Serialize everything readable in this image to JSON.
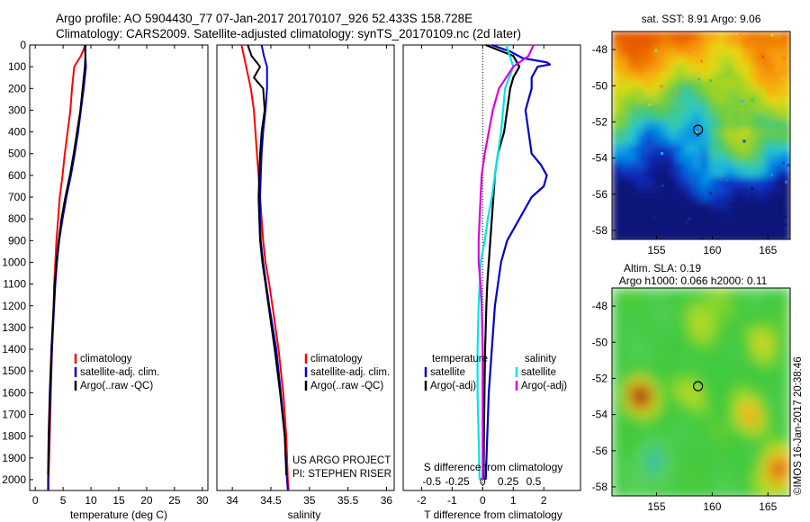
{
  "title_line1": "Argo profile: AO 5904430_77 07-Jan-2017 20170107_926 52.433S 158.728E",
  "title_line2": "Climatology: CARS2009. Satellite-adjusted climatology: synTS_20170109.nc (2d later)",
  "credit_line1": "US ARGO PROJECT",
  "credit_line2": "PI: STEPHEN RISER",
  "sst_title": "sat. SST: 8.91  Argo: 9.06",
  "sla_title_line1": "Altim. SLA: 0.19",
  "sla_title_line2": "Argo h1000: 0.066 h2000: 0.11",
  "watermark": "©IMOS 16-Jan-2017 20:38:46",
  "colors": {
    "climatology": "#ff0000",
    "satellite": "#0000cc",
    "argo": "#000000",
    "sat_salinity": "#00e5e5",
    "argo_salinity": "#dd00dd"
  },
  "chart_data": [
    {
      "type": "line",
      "id": "temperature",
      "xlabel": "temperature (deg C)",
      "ylabel": "",
      "xlim": [
        -1,
        31
      ],
      "ylim": [
        2050,
        0
      ],
      "xticks": [
        0,
        5,
        10,
        15,
        20,
        25,
        30
      ],
      "yticks": [
        0,
        100,
        200,
        300,
        400,
        500,
        600,
        700,
        800,
        900,
        1000,
        1100,
        1200,
        1300,
        1400,
        1500,
        1600,
        1700,
        1800,
        1900,
        2000
      ],
      "legend": {
        "position": "lower-middle",
        "entries": [
          "climatology",
          "satellite-adj. clim.",
          "Argo(..raw -QC)"
        ]
      },
      "series": [
        {
          "name": "climatology",
          "color": "#ff0000",
          "depth": [
            0,
            50,
            100,
            200,
            300,
            400,
            500,
            600,
            700,
            800,
            900,
            1000,
            1100,
            1200,
            1400,
            1600,
            1800,
            2000,
            2050
          ],
          "values": [
            9.0,
            8.2,
            7.0,
            6.6,
            6.3,
            5.8,
            5.3,
            4.9,
            4.4,
            4.1,
            3.8,
            3.6,
            3.4,
            3.3,
            3.0,
            2.8,
            2.6,
            2.4,
            2.4
          ]
        },
        {
          "name": "satellite-adj. clim.",
          "color": "#0000cc",
          "depth": [
            0,
            50,
            100,
            200,
            300,
            400,
            500,
            600,
            700,
            800,
            900,
            1000,
            1100,
            1200,
            1400,
            1600,
            1800,
            2000,
            2050
          ],
          "values": [
            8.9,
            9.0,
            9.1,
            8.7,
            8.2,
            7.7,
            7.1,
            6.4,
            5.6,
            4.9,
            4.3,
            3.9,
            3.6,
            3.4,
            3.0,
            2.7,
            2.5,
            2.3,
            2.3
          ]
        },
        {
          "name": "Argo(..raw -QC)",
          "color": "#000000",
          "depth": [
            0,
            50,
            100,
            200,
            300,
            400,
            500,
            600,
            700,
            800,
            900,
            1000,
            1100,
            1200,
            1400,
            1600,
            1800,
            1980
          ],
          "values": [
            9.0,
            9.0,
            8.9,
            8.5,
            8.1,
            7.5,
            6.9,
            6.2,
            5.4,
            4.7,
            4.2,
            3.8,
            3.5,
            3.3,
            2.9,
            2.6,
            2.4,
            2.3
          ]
        }
      ]
    },
    {
      "type": "line",
      "id": "salinity",
      "xlabel": "salinity",
      "ylabel": "",
      "xlim": [
        33.8,
        36.1
      ],
      "ylim": [
        2050,
        0
      ],
      "xticks": [
        34,
        34.5,
        35,
        35.5,
        36
      ],
      "legend": {
        "position": "lower-right",
        "entries": [
          "climatology",
          "satellite-adj. clim.",
          "Argo(..raw -QC)"
        ]
      },
      "series": [
        {
          "name": "climatology",
          "color": "#ff0000",
          "depth": [
            0,
            50,
            100,
            200,
            300,
            400,
            500,
            600,
            700,
            800,
            900,
            1000,
            1100,
            1200,
            1400,
            1600,
            1800,
            2000,
            2050
          ],
          "values": [
            34.12,
            34.15,
            34.18,
            34.24,
            34.28,
            34.3,
            34.32,
            34.34,
            34.36,
            34.38,
            34.4,
            34.43,
            34.48,
            34.52,
            34.6,
            34.66,
            34.7,
            34.72,
            34.73
          ]
        },
        {
          "name": "satellite-adj. clim.",
          "color": "#0000cc",
          "depth": [
            0,
            50,
            100,
            200,
            300,
            400,
            500,
            600,
            700,
            800,
            900,
            1000,
            1100,
            1200,
            1400,
            1600,
            1800,
            2000,
            2050
          ],
          "values": [
            34.38,
            34.41,
            34.45,
            34.45,
            34.43,
            34.4,
            34.38,
            34.37,
            34.36,
            34.36,
            34.37,
            34.4,
            34.44,
            34.48,
            34.57,
            34.63,
            34.68,
            34.71,
            34.72
          ]
        },
        {
          "name": "Argo(..raw -QC)",
          "color": "#000000",
          "depth": [
            0,
            50,
            100,
            150,
            200,
            300,
            400,
            500,
            600,
            700,
            800,
            900,
            1000,
            1100,
            1200,
            1400,
            1600,
            1800,
            1980
          ],
          "values": [
            34.2,
            34.25,
            34.36,
            34.28,
            34.4,
            34.42,
            34.38,
            34.36,
            34.35,
            34.34,
            34.35,
            34.36,
            34.39,
            34.43,
            34.47,
            34.55,
            34.62,
            34.68,
            34.7
          ]
        }
      ]
    },
    {
      "type": "line",
      "id": "difference",
      "xlabel": "T difference from climatology",
      "xlabel_top": "S difference from climatology",
      "xlim": [
        -2.6,
        3.2
      ],
      "ylim": [
        2050,
        0
      ],
      "xticks_T": [
        -2,
        -1,
        0,
        1,
        2
      ],
      "xticks_S": [
        -0.5,
        -0.25,
        0,
        0.25,
        0.5
      ],
      "legend": {
        "position": "lower-middle",
        "entries": [
          "temperature",
          "satellite",
          "Argo(-adj)",
          "salinity",
          "satellite",
          "Argo(-adj)"
        ]
      },
      "series": [
        {
          "name": "satellite",
          "group": "temperature",
          "color": "#0000cc",
          "depth": [
            0,
            30,
            60,
            80,
            90,
            100,
            150,
            200,
            300,
            400,
            500,
            550,
            600,
            650,
            700,
            800,
            900,
            1000,
            1100,
            1200,
            1400,
            1600,
            1800,
            2000
          ],
          "values": [
            0.3,
            0.9,
            1.3,
            2.1,
            2.2,
            1.8,
            1.6,
            1.6,
            1.4,
            1.5,
            1.6,
            1.9,
            2.1,
            2.0,
            1.6,
            1.2,
            0.8,
            0.6,
            0.5,
            0.4,
            0.3,
            0.2,
            0.15,
            0.1
          ]
        },
        {
          "name": "Argo(-adj)",
          "group": "temperature",
          "color": "#000000",
          "depth": [
            0,
            50,
            100,
            150,
            200,
            300,
            400,
            500,
            600,
            700,
            800,
            900,
            1000,
            1100,
            1200,
            1400,
            1600,
            1800,
            2000
          ],
          "values": [
            0.1,
            1.0,
            1.2,
            1.0,
            0.9,
            0.8,
            0.7,
            0.5,
            0.4,
            0.35,
            0.3,
            0.25,
            0.2,
            0.15,
            0.12,
            0.08,
            0.06,
            0.04,
            0.03
          ]
        },
        {
          "name": "satellite",
          "group": "salinity",
          "color": "#00e5e5",
          "depth": [
            0,
            100,
            200,
            300,
            400,
            500,
            600,
            700,
            800,
            900,
            1000,
            1200,
            1400,
            1600,
            1800,
            2000
          ],
          "values": [
            0.23,
            0.3,
            0.22,
            0.2,
            0.18,
            0.15,
            0.12,
            0.09,
            0.05,
            0.02,
            -0.02,
            -0.04,
            -0.05,
            -0.05,
            -0.04,
            -0.03
          ]
        },
        {
          "name": "Argo(-adj)",
          "group": "salinity",
          "color": "#dd00dd",
          "depth": [
            0,
            50,
            100,
            200,
            300,
            400,
            500,
            600,
            700,
            800,
            900,
            1000,
            1100,
            1200,
            1400,
            1600,
            1800,
            2000
          ],
          "values": [
            0.5,
            0.45,
            0.3,
            0.16,
            0.1,
            0.06,
            0.02,
            -0.01,
            -0.02,
            -0.03,
            -0.04,
            -0.04,
            -0.02,
            -0.01,
            0.0,
            0.0,
            0.0,
            0.0
          ]
        }
      ]
    },
    {
      "type": "heatmap",
      "id": "sst-map",
      "title": "sat. SST: 8.91  Argo: 9.06",
      "xlim": [
        151,
        167
      ],
      "ylim": [
        -58.5,
        -47
      ],
      "xticks": [
        155,
        160,
        165
      ],
      "yticks": [
        -48,
        -50,
        -52,
        -54,
        -56,
        -58
      ],
      "marker": {
        "lon": 158.728,
        "lat": -52.433
      }
    },
    {
      "type": "heatmap",
      "id": "sla-map",
      "title": "Altim. SLA: 0.19",
      "subtitle": "Argo h1000: 0.066 h2000: 0.11",
      "xlim": [
        151,
        167
      ],
      "ylim": [
        -58.5,
        -47
      ],
      "xticks": [
        155,
        160,
        165
      ],
      "yticks": [
        -48,
        -50,
        -52,
        -54,
        -56,
        -58
      ],
      "marker": {
        "lon": 158.728,
        "lat": -52.433
      }
    }
  ]
}
